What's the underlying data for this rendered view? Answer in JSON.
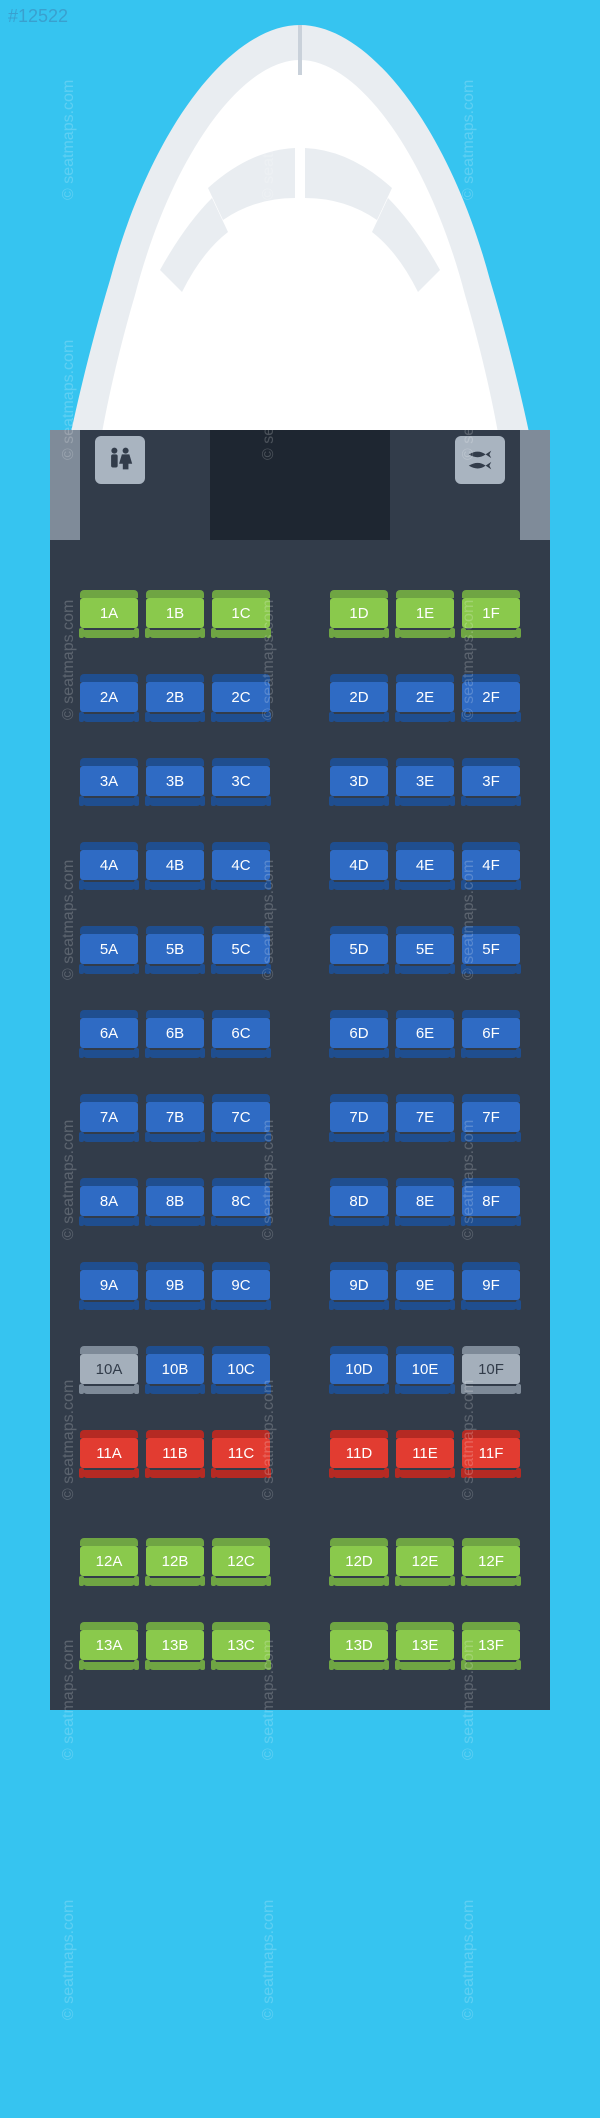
{
  "meta": {
    "id_tag": "#12522",
    "watermark_text": "© seatmaps.com"
  },
  "colors": {
    "page_bg": "#36c4f0",
    "fuselage": "#323c4a",
    "nose_outer": "#e9edf1",
    "nose_inner": "#ffffff",
    "window": "#ffffff",
    "door": "#7f8b99",
    "lav_bg": "#a9b4c0",
    "bulkhead": "#1e2631",
    "seat_green_back": "#8ac94c",
    "seat_green_edge": "#6fa543",
    "seat_blue_back": "#2f6bc4",
    "seat_blue_edge": "#1f4e8f",
    "seat_grey_back": "#a4afbb",
    "seat_grey_edge": "#7e8a98",
    "seat_red_back": "#e23c31",
    "seat_red_edge": "#b52a23"
  },
  "seat_map": {
    "type": "aircraft-seat-map",
    "columns_left": [
      "A",
      "B",
      "C"
    ],
    "columns_right": [
      "D",
      "E",
      "F"
    ],
    "layout": "3-3",
    "rows": [
      {
        "num": 1,
        "gap": "normal",
        "seats": {
          "A": "green",
          "B": "green",
          "C": "green",
          "D": "green",
          "E": "green",
          "F": "green"
        }
      },
      {
        "num": 2,
        "gap": "normal",
        "seats": {
          "A": "blue",
          "B": "blue",
          "C": "blue",
          "D": "blue",
          "E": "blue",
          "F": "blue"
        }
      },
      {
        "num": 3,
        "gap": "normal",
        "seats": {
          "A": "blue",
          "B": "blue",
          "C": "blue",
          "D": "blue",
          "E": "blue",
          "F": "blue"
        }
      },
      {
        "num": 4,
        "gap": "normal",
        "seats": {
          "A": "blue",
          "B": "blue",
          "C": "blue",
          "D": "blue",
          "E": "blue",
          "F": "blue"
        }
      },
      {
        "num": 5,
        "gap": "normal",
        "seats": {
          "A": "blue",
          "B": "blue",
          "C": "blue",
          "D": "blue",
          "E": "blue",
          "F": "blue"
        }
      },
      {
        "num": 6,
        "gap": "normal",
        "seats": {
          "A": "blue",
          "B": "blue",
          "C": "blue",
          "D": "blue",
          "E": "blue",
          "F": "blue"
        }
      },
      {
        "num": 7,
        "gap": "normal",
        "seats": {
          "A": "blue",
          "B": "blue",
          "C": "blue",
          "D": "blue",
          "E": "blue",
          "F": "blue"
        }
      },
      {
        "num": 8,
        "gap": "normal",
        "seats": {
          "A": "blue",
          "B": "blue",
          "C": "blue",
          "D": "blue",
          "E": "blue",
          "F": "blue"
        }
      },
      {
        "num": 9,
        "gap": "normal",
        "seats": {
          "A": "blue",
          "B": "blue",
          "C": "blue",
          "D": "blue",
          "E": "blue",
          "F": "blue"
        }
      },
      {
        "num": 10,
        "gap": "normal",
        "seats": {
          "A": "grey",
          "B": "blue",
          "C": "blue",
          "D": "blue",
          "E": "blue",
          "F": "grey"
        }
      },
      {
        "num": 11,
        "gap": "normal",
        "seats": {
          "A": "red",
          "B": "red",
          "C": "red",
          "D": "red",
          "E": "red",
          "F": "red"
        }
      },
      {
        "num": 12,
        "gap": "extra",
        "seats": {
          "A": "green",
          "B": "green",
          "C": "green",
          "D": "green",
          "E": "green",
          "F": "green"
        }
      },
      {
        "num": 13,
        "gap": "normal",
        "seats": {
          "A": "green",
          "B": "green",
          "C": "green",
          "D": "green",
          "E": "green",
          "F": "green"
        }
      }
    ],
    "front_amenities": {
      "left": "lavatory",
      "right": "galley",
      "center": "bulkhead",
      "lavatory_icon": "person-pair-icon",
      "galley_icon": "fish-icon"
    }
  }
}
